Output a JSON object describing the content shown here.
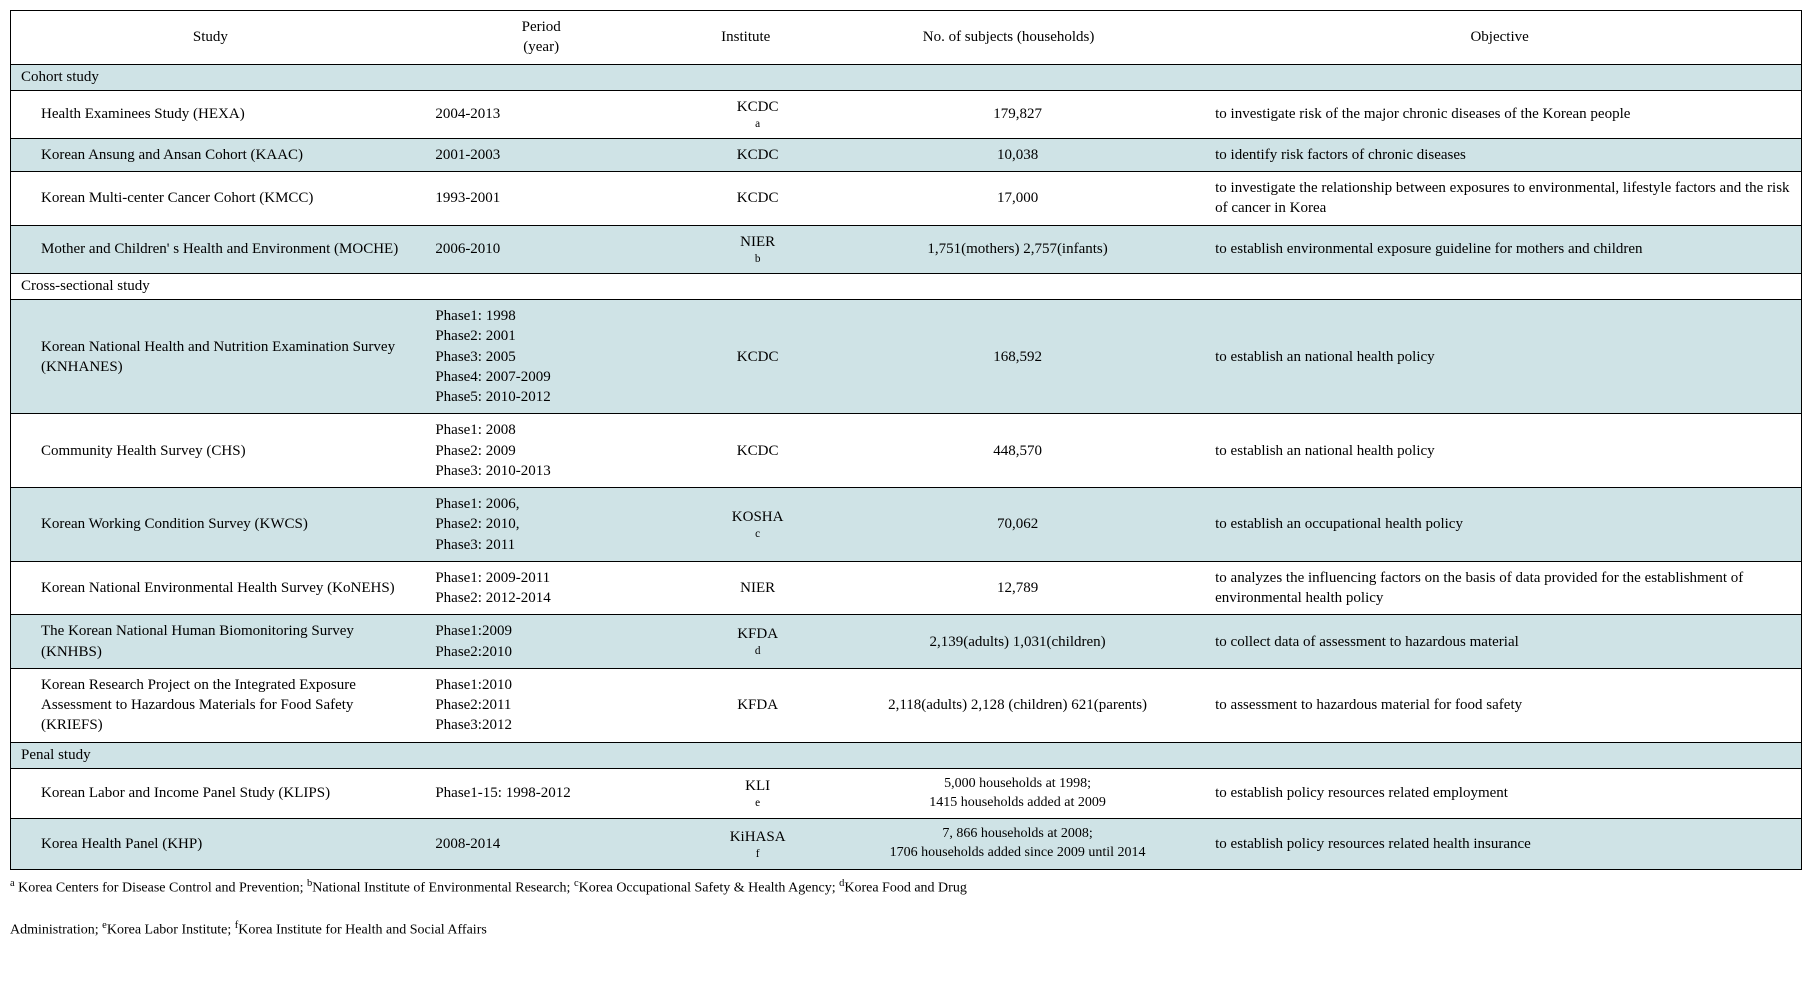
{
  "colors": {
    "alt_row": "#cfe3e6",
    "border": "#000000",
    "bg": "#ffffff",
    "text": "#000000"
  },
  "headers": {
    "study": "Study",
    "period": "Period\n(year)",
    "institute": "Institute",
    "subjects": "No. of    subjects (households)",
    "objective": "Objective"
  },
  "sections": {
    "cohort": "Cohort study",
    "cross": "Cross-sectional study",
    "penal": "Penal study"
  },
  "rows": {
    "hexa": {
      "study": "Health Examinees Study (HEXA)",
      "period": "2004-2013",
      "inst_html": "KCDC<sup>a</sup>",
      "subj": "179,827",
      "obj": "to   investigate risk of the major chronic diseases of the Korean people"
    },
    "kaac": {
      "study": "Korean Ansung and Ansan Cohort (KAAC)",
      "period": "2001-2003",
      "inst": "KCDC",
      "subj": "10,038",
      "obj": "to identify risk factors of chronic diseases"
    },
    "kmcc": {
      "study": "Korean Multi-center Cancer Cohort (KMCC)",
      "period": "1993-2001",
      "inst": "KCDC",
      "subj": "17,000",
      "obj": "to   investigate the relationship between exposures to environmental, lifestyle   factors and the risk of cancer in Korea"
    },
    "moche": {
      "study": "Mother and Children' s Health and Environment (MOCHE)",
      "period": "2006-2010",
      "inst_html": "NIER<sup>b</sup>",
      "subj": "1,751(mothers) 2,757(infants)",
      "obj": "to establish environmental exposure guideline for mothers and children"
    },
    "knhanes": {
      "study": "Korean National Health and Nutrition Examination Survey (KNHANES)",
      "period": "Phase1: 1998\nPhase2: 2001\nPhase3: 2005\nPhase4: 2007-2009\nPhase5: 2010-2012",
      "inst": "KCDC",
      "subj": "168,592",
      "obj": "to establish an national health policy"
    },
    "chs": {
      "study": "Community Health Survey (CHS)",
      "period": "Phase1:    2008\nPhase2:    2009\nPhase3:    2010-2013",
      "inst": "KCDC",
      "subj": "448,570",
      "obj": "to   establish an national health policy"
    },
    "kwcs": {
      "study": "Korean Working Condition Survey (KWCS)",
      "period": "Phase1: 2006,\nPhase2: 2010,\nPhase3: 2011",
      "inst_html": "KOSHA<sup>c</sup>",
      "subj": "70,062",
      "obj": "to establish an occupational health policy"
    },
    "konehs": {
      "study": "Korean National Environmental Health Survey (KoNEHS)",
      "period": "Phase1:    2009-2011\nPhase2:    2012-2014",
      "inst": "NIER",
      "subj": "12,789",
      "obj": "to   analyzes the influencing factors on the basis of data provided for the establishment   of environmental health policy"
    },
    "knhbs": {
      "study": "The Korean National Human Biomonitoring Survey (KNHBS)",
      "period": "Phase1:2009\nPhase2:2010",
      "inst_html": "KFDA<sup>d</sup>",
      "subj": "2,139(adults) 1,031(children)",
      "obj": "to collect data of assessment to hazardous material"
    },
    "kriefs": {
      "study": "Korean Research Project on the Integrated Exposure Assessment to Hazardous Materials for Food Safety (KRIEFS)",
      "period": "Phase1:2010\nPhase2:2011\nPhase3:2012",
      "inst": "KFDA",
      "subj": "2,118(adults)    2,128 (children) 621(parents)",
      "obj": "to   assessment to hazardous material for food safety"
    },
    "klips": {
      "study": "Korean Labor and Income Panel Study (KLIPS)",
      "period": "Phase1-15:   1998-2012",
      "inst_html": "KLI<sup>e</sup>",
      "subj": "5,000    households at 1998;\n1415    households added at 2009",
      "obj": "to   establish policy resources related employment"
    },
    "khp": {
      "study": "Korea Health Panel (KHP)",
      "period": "2008-2014",
      "inst_html": "KiHASA<sup>f</sup>",
      "subj": "7, 866 households at 2008;\n1706 households added since 2009 until 2014",
      "obj": "to establish policy resources related health insurance"
    }
  },
  "footnotes": {
    "line1_html": "<sup>a</sup> Korea Centers for Disease Control and Prevention; <sup>b</sup>National Institute of Environmental Research; <sup>c</sup>Korea Occupational Safety & Health Agency; <sup>d</sup>Korea Food and Drug",
    "line2_html": "Administration; <sup>e</sup>Korea Labor Institute; <sup>f</sup>Korea Institute for Health and Social Affairs"
  }
}
